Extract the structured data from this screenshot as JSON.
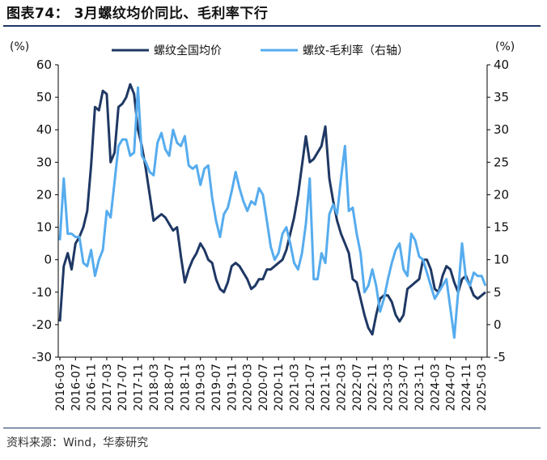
{
  "header": {
    "title": "图表74： 3月螺纹均价同比、毛利率下行"
  },
  "footer": {
    "source": "资料来源：Wind，华泰研究"
  },
  "chart_data": {
    "type": "line",
    "left_unit": "(%)",
    "right_unit": "(%)",
    "ylim_left": [
      -30,
      60
    ],
    "ylim_right": [
      -5,
      40
    ],
    "yticks_left": [
      "60",
      "50",
      "40",
      "30",
      "20",
      "10",
      "0",
      "-10",
      "-20",
      "-30"
    ],
    "yticks_right": [
      "40",
      "35",
      "30",
      "25",
      "20",
      "15",
      "10",
      "5",
      "0",
      "-5"
    ],
    "x_tick_labels": [
      "2016-03",
      "2016-07",
      "2016-11",
      "2017-03",
      "2017-07",
      "2017-11",
      "2018-03",
      "2018-07",
      "2018-11",
      "2019-03",
      "2019-07",
      "2019-11",
      "2020-03",
      "2020-07",
      "2020-11",
      "2021-03",
      "2021-07",
      "2021-11",
      "2022-03",
      "2022-07",
      "2022-11",
      "2023-03",
      "2023-07",
      "2023-11",
      "2024-03",
      "2024-07",
      "2024-11",
      "2025-03"
    ],
    "legend_position": "top",
    "series": [
      {
        "name": "螺纹全国均价",
        "axis": "left",
        "color": "#1f3864",
        "values": [
          -19,
          -2,
          2,
          -3,
          5,
          7,
          10,
          15,
          29,
          47,
          46,
          52,
          51,
          30,
          33,
          47,
          48,
          50,
          54,
          51,
          40,
          35,
          28,
          20,
          12,
          13,
          14,
          13,
          11,
          9,
          10,
          1,
          -7,
          -3,
          0,
          2,
          5,
          3,
          0,
          -1,
          -6,
          -9,
          -10,
          -7,
          -2,
          -1,
          -2,
          -4,
          -6,
          -9,
          -8,
          -6,
          -6,
          -3,
          -3,
          -2,
          -1,
          0,
          3,
          8,
          13,
          20,
          29,
          38,
          30,
          31,
          33,
          35,
          41,
          25,
          18,
          12,
          8,
          5,
          2,
          -6,
          -7,
          -12,
          -17,
          -21,
          -23,
          -17,
          -12,
          -11,
          -11,
          -13,
          -17,
          -19,
          -17,
          -9,
          -8,
          -7,
          -6,
          0,
          0,
          -3,
          -9,
          -10,
          -5,
          -2,
          -3,
          -7,
          -10,
          -6,
          -5,
          -8,
          -11,
          -12,
          -11,
          -10
        ]
      },
      {
        "name": "螺纹-毛利率（右轴）",
        "axis": "right",
        "color": "#56acee",
        "values": [
          13,
          22.5,
          14,
          14,
          13.5,
          13.5,
          9.5,
          9,
          11.5,
          7.5,
          10,
          11.5,
          17.5,
          16.5,
          22,
          27.5,
          28.5,
          28.5,
          26,
          26.5,
          36.5,
          26,
          25,
          23.5,
          23,
          28,
          29.5,
          27,
          26,
          30,
          28,
          27.5,
          29,
          24.5,
          24,
          24.5,
          21.5,
          24,
          24.5,
          19.5,
          16,
          13.5,
          17,
          18,
          20.5,
          23.5,
          21,
          19,
          17.5,
          19,
          18.5,
          21,
          20,
          16,
          12,
          10,
          11,
          14,
          15,
          12.5,
          9.5,
          8.5,
          11,
          15.5,
          22.5,
          7,
          7,
          11,
          9.5,
          17,
          18.5,
          17,
          22.5,
          27.5,
          17.5,
          18,
          14,
          11,
          5,
          6,
          8.5,
          6,
          2,
          4,
          7,
          9.5,
          11.5,
          12.5,
          8.5,
          7.5,
          14,
          13,
          10.5,
          10,
          8,
          6,
          4,
          5,
          6,
          7,
          2.5,
          -2,
          5,
          12.5,
          7,
          6,
          8,
          7.5,
          7.5,
          6
        ]
      }
    ]
  }
}
